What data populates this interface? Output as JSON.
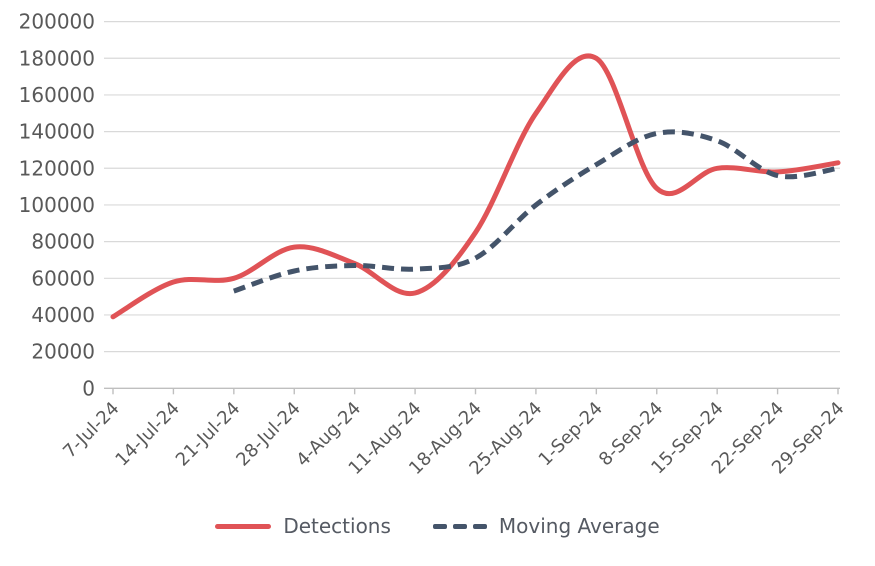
{
  "chart_data": {
    "type": "line",
    "title": "",
    "xlabel": "",
    "ylabel": "",
    "categories": [
      "7-Jul-24",
      "14-Jul-24",
      "21-Jul-24",
      "28-Jul-24",
      "4-Aug-24",
      "11-Aug-24",
      "18-Aug-24",
      "25-Aug-24",
      "1-Sep-24",
      "8-Sep-24",
      "15-Sep-24",
      "22-Sep-24",
      "29-Sep-24"
    ],
    "series": [
      {
        "name": "Detections",
        "style": "solid",
        "color": "#e05356",
        "values": [
          39000,
          58000,
          60000,
          77000,
          68000,
          52000,
          85000,
          150000,
          180000,
          109000,
          120000,
          118000,
          123000
        ]
      },
      {
        "name": "Moving Average",
        "style": "dashed",
        "color": "#44546a",
        "values": [
          null,
          null,
          53000,
          64000,
          67000,
          65000,
          71000,
          100000,
          122000,
          139000,
          135000,
          116000,
          120000
        ]
      }
    ],
    "ylim": [
      0,
      200000
    ],
    "ytick_step": 20000,
    "ytick_labels": [
      "0",
      "20000",
      "40000",
      "60000",
      "80000",
      "100000",
      "120000",
      "140000",
      "160000",
      "180000",
      "200000"
    ],
    "grid": "horizontal",
    "legend_position": "bottom",
    "smooth_lines": true,
    "colors": {
      "axis_text": "#595959",
      "gridline": "#d9d9d9",
      "axis_line": "#bfbfbf"
    }
  },
  "legend": {
    "items": [
      {
        "label": "Detections"
      },
      {
        "label": "Moving Average"
      }
    ]
  }
}
